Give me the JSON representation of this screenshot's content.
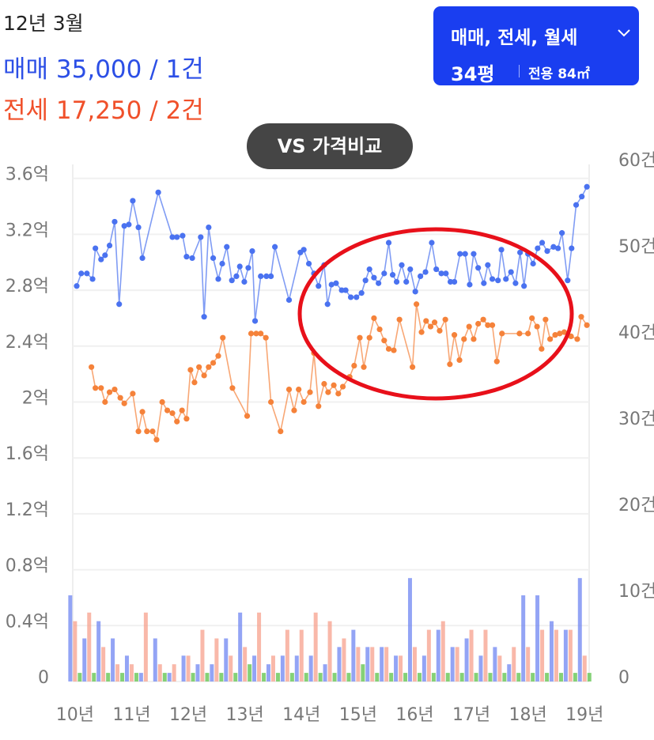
{
  "header": {
    "date": "12년 3월",
    "sale": "매매 35,000 / 1건",
    "jeonse": "전세 17,250 / 2건"
  },
  "filter": {
    "types": "매매, 전세, 월세",
    "size": "34평",
    "area": "전용 84㎡"
  },
  "compare_button": "VS 가격비교",
  "chart_data": {
    "type": "line",
    "xlim": [
      9.96,
      19.08
    ],
    "xticks": [
      {
        "value": 10,
        "label": "10년"
      },
      {
        "value": 11,
        "label": "11년"
      },
      {
        "value": 12,
        "label": "12년"
      },
      {
        "value": 13,
        "label": "13년"
      },
      {
        "value": 14,
        "label": "14년"
      },
      {
        "value": 15,
        "label": "15년"
      },
      {
        "value": 16,
        "label": "16년"
      },
      {
        "value": 17,
        "label": "17년"
      },
      {
        "value": 18,
        "label": "18년"
      },
      {
        "value": 19,
        "label": "19년"
      }
    ],
    "ylim": [
      0,
      3.7
    ],
    "yticks": [
      0,
      {
        "value": 0.4,
        "label": "0.4억"
      },
      {
        "value": 0.8,
        "label": "0.8억"
      },
      {
        "value": 1.2,
        "label": "1.2억"
      },
      {
        "value": 1.6,
        "label": "1.6억"
      },
      {
        "value": 2,
        "label": "2억"
      },
      {
        "value": 2.4,
        "label": "2.4억"
      },
      {
        "value": 2.8,
        "label": "2.8억"
      },
      {
        "value": 3.2,
        "label": "3.2억"
      },
      {
        "value": 3.6,
        "label": "3.6억"
      }
    ],
    "y2lim": [
      0,
      60
    ],
    "y2ticks": [
      0,
      {
        "value": 10,
        "label": "10건"
      },
      {
        "value": 20,
        "label": "20건"
      },
      {
        "value": 30,
        "label": "30건"
      },
      {
        "value": 40,
        "label": "40건"
      },
      {
        "value": 50,
        "label": "50건"
      },
      {
        "value": 60,
        "label": "60건"
      }
    ],
    "grid": true,
    "series": [
      {
        "type": "bar",
        "axis": "y2",
        "color": "#6f86f2",
        "x": [
          10,
          10.25,
          10.5,
          10.75,
          11,
          11.25,
          11.5,
          11.75,
          12,
          12.25,
          12.5,
          12.75,
          13,
          13.25,
          13.5,
          13.75,
          14,
          14.25,
          14.5,
          14.75,
          15,
          15.25,
          15.5,
          15.75,
          16,
          16.25,
          16.5,
          16.75,
          17,
          17.25,
          17.5,
          17.75,
          18,
          18.25,
          18.5,
          18.75,
          19
        ],
        "values": [
          10,
          5,
          7,
          5,
          3,
          1,
          5,
          1,
          3,
          2,
          2,
          5,
          8,
          3,
          2,
          3,
          3,
          3,
          2,
          4,
          6,
          4,
          4,
          3,
          12,
          3,
          6,
          4,
          5,
          3,
          4,
          2,
          10,
          10,
          7,
          6,
          12
        ]
      },
      {
        "type": "bar",
        "axis": "y2",
        "color": "#f7a08c",
        "x": [
          10,
          10.25,
          10.5,
          10.75,
          11,
          11.25,
          11.5,
          11.75,
          12,
          12.25,
          12.5,
          12.75,
          13,
          13.25,
          13.5,
          13.75,
          14,
          14.25,
          14.5,
          14.75,
          15,
          15.25,
          15.5,
          15.75,
          16,
          16.25,
          16.5,
          16.75,
          17,
          17.25,
          17.5,
          17.75,
          18,
          18.25,
          18.5,
          18.75,
          19
        ],
        "values": [
          7,
          8,
          4,
          2,
          2,
          8,
          2,
          2,
          3,
          6,
          5,
          3,
          4,
          8,
          3,
          6,
          6,
          8,
          7,
          5,
          4,
          4,
          4,
          3,
          4,
          6,
          7,
          4,
          6,
          6,
          3,
          4,
          4,
          6,
          6,
          6,
          3
        ]
      },
      {
        "type": "bar",
        "axis": "y2",
        "color": "#5cc14a",
        "x": [
          10,
          10.25,
          10.5,
          10.75,
          11,
          11.25,
          11.5,
          11.75,
          12,
          12.25,
          12.5,
          12.75,
          13,
          13.25,
          13.5,
          13.75,
          14,
          14.25,
          14.5,
          14.75,
          15,
          15.25,
          15.5,
          15.75,
          16,
          16.25,
          16.5,
          16.75,
          17,
          17.25,
          17.5,
          17.75,
          18,
          18.25,
          18.5,
          18.75,
          19
        ],
        "values": [
          1,
          1,
          1,
          1,
          1,
          0,
          1,
          0,
          1,
          1,
          1,
          1,
          2,
          1,
          1,
          1,
          1,
          1,
          1,
          1,
          2,
          1,
          1,
          1,
          1,
          1,
          1,
          1,
          1,
          1,
          1,
          1,
          1,
          1,
          1,
          1,
          1
        ]
      },
      {
        "type": "line",
        "color": "#4a72f0",
        "x": [
          10.03,
          10.11,
          10.21,
          10.31,
          10.36,
          10.46,
          10.53,
          10.61,
          10.7,
          10.78,
          10.87,
          10.95,
          11.02,
          11.12,
          11.19,
          11.47,
          11.72,
          11.8,
          11.9,
          11.97,
          12.07,
          12.22,
          12.28,
          12.36,
          12.44,
          12.53,
          12.6,
          12.68,
          12.77,
          12.85,
          12.91,
          12.99,
          13.06,
          13.13,
          13.18,
          13.28,
          13.38,
          13.46,
          13.53,
          13.78,
          13.98,
          14.04,
          14.13,
          14.22,
          14.3,
          14.4,
          14.46,
          14.53,
          14.61,
          14.71,
          14.78,
          14.87,
          14.97,
          15.06,
          15.13,
          15.2,
          15.28,
          15.36,
          15.46,
          15.54,
          15.61,
          15.68,
          15.77,
          15.85,
          15.92,
          16.01,
          16.1,
          16.19,
          16.3,
          16.38,
          16.47,
          16.55,
          16.63,
          16.7,
          16.8,
          16.89,
          16.97,
          17.04,
          17.12,
          17.22,
          17.29,
          17.37,
          17.47,
          17.53,
          17.61,
          17.7,
          17.78,
          17.86,
          17.93,
          18.0,
          18.09,
          18.17,
          18.25,
          18.34,
          18.45,
          18.53,
          18.6,
          18.7,
          18.77,
          18.85,
          18.95,
          19.04
        ],
        "values": [
          2.83,
          2.92,
          2.92,
          2.88,
          3.1,
          3.02,
          3.05,
          3.12,
          3.29,
          2.7,
          3.26,
          3.27,
          3.44,
          3.25,
          3.03,
          3.5,
          3.18,
          3.18,
          3.19,
          3.04,
          3.03,
          3.18,
          2.61,
          3.25,
          3.03,
          2.88,
          2.99,
          3.11,
          2.87,
          2.9,
          2.97,
          2.86,
          2.96,
          3.08,
          2.58,
          2.9,
          2.9,
          2.9,
          3.11,
          2.73,
          3.07,
          3.09,
          2.99,
          2.92,
          2.83,
          2.98,
          2.7,
          2.84,
          2.85,
          2.8,
          2.8,
          2.75,
          2.75,
          2.78,
          2.87,
          2.95,
          2.89,
          2.85,
          2.92,
          3.14,
          2.91,
          2.86,
          2.98,
          2.86,
          2.95,
          2.79,
          2.9,
          2.93,
          3.14,
          2.95,
          2.92,
          2.92,
          2.86,
          2.86,
          3.06,
          3.06,
          2.84,
          3.06,
          2.96,
          2.85,
          2.98,
          2.88,
          2.87,
          3.09,
          2.88,
          2.93,
          2.85,
          3.07,
          2.83,
          3.06,
          2.99,
          3.1,
          3.14,
          3.08,
          3.11,
          3.1,
          3.21,
          2.87,
          3.1,
          3.41,
          3.47,
          3.54
        ]
      },
      {
        "type": "line",
        "color": "#f5823a",
        "x": [
          10.29,
          10.36,
          10.46,
          10.53,
          10.61,
          10.7,
          10.8,
          10.87,
          11.02,
          11.12,
          11.19,
          11.27,
          11.37,
          11.44,
          11.54,
          11.63,
          11.72,
          11.8,
          11.89,
          11.97,
          12.04,
          12.11,
          12.19,
          12.28,
          12.36,
          12.44,
          12.53,
          12.61,
          12.78,
          13.04,
          13.11,
          13.2,
          13.28,
          13.37,
          13.46,
          13.63,
          13.78,
          13.87,
          13.95,
          14.04,
          14.15,
          14.22,
          14.3,
          14.4,
          14.47,
          14.57,
          14.65,
          14.73,
          14.85,
          14.93,
          15.03,
          15.1,
          15.2,
          15.28,
          15.38,
          15.46,
          15.54,
          15.63,
          15.73,
          15.96,
          16.03,
          16.12,
          16.2,
          16.28,
          16.35,
          16.44,
          16.54,
          16.62,
          16.7,
          16.79,
          16.87,
          16.96,
          17.04,
          17.12,
          17.21,
          17.29,
          17.37,
          17.45,
          17.54,
          17.85,
          18.0,
          18.07,
          18.16,
          18.24,
          18.31,
          18.39,
          18.48,
          18.56,
          18.64,
          18.76,
          18.87,
          18.94,
          19.04
        ],
        "values": [
          2.25,
          2.1,
          2.1,
          2.0,
          2.07,
          2.09,
          2.03,
          1.99,
          2.06,
          1.79,
          1.93,
          1.79,
          1.79,
          1.73,
          2.0,
          1.94,
          1.92,
          1.86,
          1.94,
          1.88,
          2.23,
          2.14,
          2.25,
          2.19,
          2.25,
          2.28,
          2.33,
          2.46,
          2.1,
          1.9,
          2.49,
          2.49,
          2.49,
          2.46,
          2.0,
          1.79,
          2.09,
          1.94,
          2.09,
          2.0,
          2.07,
          2.35,
          1.97,
          2.13,
          2.07,
          2.12,
          2.06,
          2.11,
          2.18,
          2.26,
          2.46,
          2.25,
          2.46,
          2.6,
          2.52,
          2.44,
          2.38,
          2.37,
          2.59,
          2.25,
          2.7,
          2.5,
          2.58,
          2.54,
          2.57,
          2.51,
          2.59,
          2.27,
          2.48,
          2.3,
          2.45,
          2.54,
          2.45,
          2.56,
          2.59,
          2.55,
          2.55,
          2.29,
          2.49,
          2.49,
          2.49,
          2.6,
          2.54,
          2.38,
          2.59,
          2.45,
          2.48,
          2.49,
          2.5,
          2.47,
          2.45,
          2.61,
          2.55
        ]
      }
    ]
  }
}
